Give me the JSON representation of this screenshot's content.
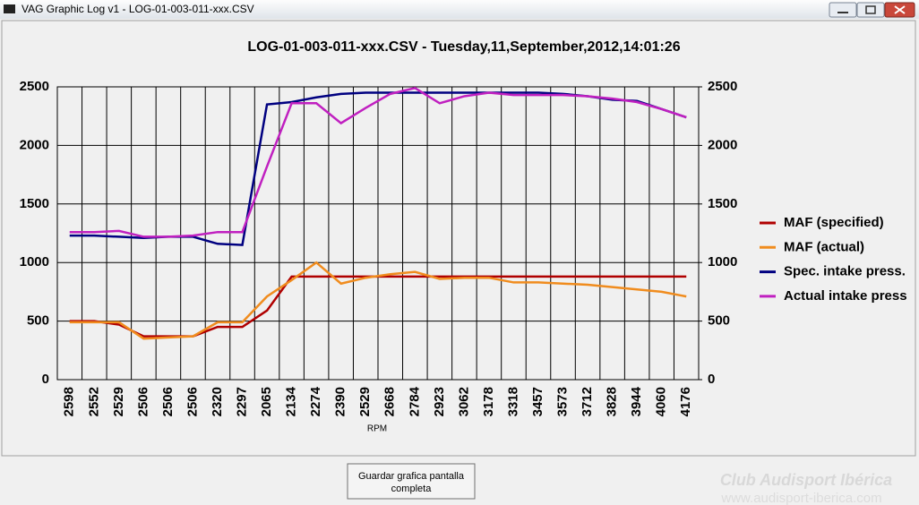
{
  "window": {
    "title": "VAG Graphic Log  v1 -  LOG-01-003-011-xxx.CSV",
    "button_lines": [
      "Guardar grafica pantalla",
      "completa"
    ],
    "watermark": [
      "Club Audisport Ibérica",
      "www.audisport-iberica.com"
    ]
  },
  "chart_data": {
    "type": "line",
    "title": "LOG-01-003-011-xxx.CSV - Tuesday,11,September,2012,14:01:26",
    "x_label": "RPM",
    "categories": [
      "2598",
      "2552",
      "2529",
      "2506",
      "2506",
      "2506",
      "2320",
      "2297",
      "2065",
      "2134",
      "2274",
      "2390",
      "2529",
      "2668",
      "2784",
      "2923",
      "3062",
      "3178",
      "3318",
      "3457",
      "3573",
      "3712",
      "3828",
      "3944",
      "4060",
      "4176"
    ],
    "series": [
      {
        "name": "MAF (specified)",
        "color": "#b00000",
        "values": [
          500,
          500,
          470,
          370,
          370,
          370,
          450,
          450,
          590,
          880,
          880,
          880,
          880,
          880,
          880,
          880,
          880,
          880,
          880,
          880,
          880,
          880,
          880,
          880,
          880,
          880
        ]
      },
      {
        "name": "MAF (actual)",
        "color": "#f08c1e",
        "values": [
          490,
          490,
          490,
          350,
          360,
          370,
          490,
          490,
          710,
          850,
          1000,
          820,
          870,
          900,
          920,
          860,
          870,
          870,
          830,
          830,
          820,
          810,
          790,
          770,
          750,
          710
        ]
      },
      {
        "name": "Spec. intake press.",
        "color": "#000080",
        "values": [
          1230,
          1230,
          1220,
          1210,
          1220,
          1220,
          1160,
          1150,
          2350,
          2370,
          2410,
          2440,
          2450,
          2450,
          2450,
          2450,
          2450,
          2450,
          2450,
          2450,
          2440,
          2420,
          2390,
          2380,
          2310,
          2240
        ]
      },
      {
        "name": "Actual intake press",
        "color": "#c020c0",
        "values": [
          1260,
          1260,
          1270,
          1220,
          1220,
          1230,
          1260,
          1260,
          1820,
          2360,
          2360,
          2190,
          2320,
          2440,
          2490,
          2360,
          2420,
          2450,
          2430,
          2430,
          2430,
          2420,
          2400,
          2370,
          2310,
          2240
        ]
      }
    ],
    "ylim": [
      0,
      2500
    ],
    "yticks": [
      0,
      500,
      1000,
      1500,
      2000,
      2500
    ],
    "y2lim": [
      0,
      2500
    ],
    "y2ticks": [
      0,
      500,
      1000,
      1500,
      2000,
      2500
    ],
    "grid": true,
    "legend": "right"
  }
}
